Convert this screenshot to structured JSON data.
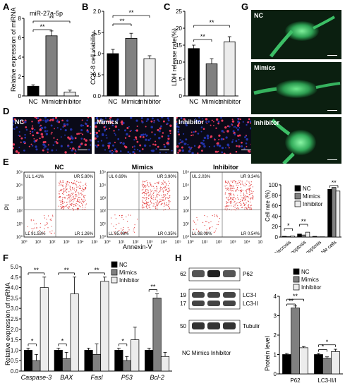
{
  "panels": {
    "A": {
      "label": "A",
      "title": "miR-27a-5p",
      "ylabel": "Relative expression of miRNA",
      "sig": [
        "**",
        "**"
      ]
    },
    "B": {
      "label": "B",
      "ylabel": "CCK-8 cell viability",
      "sig": [
        "**",
        "**"
      ]
    },
    "C": {
      "label": "C",
      "ylabel": "LDH release rate(%)",
      "sig": [
        "**",
        "**"
      ]
    },
    "D": {
      "label": "D",
      "images": [
        "NC",
        "Mimics",
        "Inhibitor"
      ]
    },
    "E": {
      "label": "E",
      "titles": [
        "NC",
        "Mimics",
        "Inhibitor"
      ],
      "ylabel": "PI",
      "xlabel": "Annexin-V",
      "quadrants": [
        {
          "ul": "UL 1.41%",
          "ur": "UR 5.80%",
          "ll": "LL 91.53%",
          "lr": "LR 1.26%"
        },
        {
          "ul": "UL 0.69%",
          "ur": "UR 3.90%",
          "ll": "LL 95.06%",
          "lr": "LR 0.35%"
        },
        {
          "ul": "UL 2.03%",
          "ur": "UR 9.34%",
          "ll": "LL 88.08%",
          "lr": "LR 0.54%"
        }
      ],
      "bar_ylabel": "Cell rate (%)",
      "legend": [
        "NC",
        "Mimics",
        "Inhibitor"
      ],
      "sig": [
        "*",
        "**",
        "**"
      ]
    },
    "F": {
      "label": "F",
      "ylabel": "Relative expression of mRNA",
      "legend": [
        "NC",
        "Mimics",
        "Inhibitor"
      ],
      "sig": [
        "*",
        "**",
        "*",
        "**",
        "**",
        "*",
        "**"
      ]
    },
    "G": {
      "label": "G",
      "images": [
        "NC",
        "Mimics",
        "Inhibitor"
      ]
    },
    "H": {
      "label": "H",
      "blot_labels": [
        "P62",
        "LC3-I",
        "LC3-II",
        "Tubulin"
      ],
      "markers": [
        "62",
        "19",
        "17",
        "50"
      ],
      "lanes": "NC  Mimics Inhibitor",
      "ylabel": "Protein level",
      "legend": [
        "NC",
        "Mimics",
        "Inhibitor"
      ],
      "sig": [
        "**",
        "**",
        "*",
        "*"
      ]
    }
  },
  "colors": {
    "nc": "#000000",
    "mimics": "#808080",
    "inhibitor": "#ececec",
    "dapi": "#2233aa",
    "edu": "#e8395a",
    "gfp": "#37c86a"
  },
  "chart_data": [
    {
      "type": "bar",
      "panel": "A",
      "categories": [
        "NC",
        "Mimics",
        "Inhibitor"
      ],
      "values": [
        1.0,
        6.2,
        0.4
      ],
      "errors": [
        0.15,
        0.5,
        0.2
      ],
      "ylim": [
        0,
        8
      ],
      "yticks": [
        0,
        2,
        4,
        6,
        8
      ],
      "title": "miR-27a-5p",
      "ylabel": "Relative expression of miRNA"
    },
    {
      "type": "bar",
      "panel": "B",
      "categories": [
        "NC",
        "Mimics",
        "Inhibitor"
      ],
      "values": [
        1.0,
        1.36,
        0.88
      ],
      "errors": [
        0.1,
        0.12,
        0.07
      ],
      "ylim": [
        0,
        2.0
      ],
      "yticks": [
        0,
        0.5,
        1.0,
        1.5,
        2.0
      ],
      "ylabel": "CCK-8 cell viability"
    },
    {
      "type": "bar",
      "panel": "C",
      "categories": [
        "NC",
        "Mimics",
        "Inhibitor"
      ],
      "values": [
        14,
        9.5,
        16
      ],
      "errors": [
        1.0,
        1.5,
        1.5
      ],
      "ylim": [
        0,
        25
      ],
      "yticks": [
        0,
        5,
        10,
        15,
        20,
        25
      ],
      "ylabel": "LDH release rate(%)"
    },
    {
      "type": "bar",
      "panel": "E",
      "categories": [
        "Necrosis",
        "Late apoptosis",
        "Early apoptosis",
        "Viable cells"
      ],
      "series": [
        {
          "name": "NC",
          "values": [
            1.4,
            5.8,
            1.3,
            91.5
          ]
        },
        {
          "name": "Mimics",
          "values": [
            0.7,
            3.9,
            0.4,
            95.1
          ]
        },
        {
          "name": "Inhibitor",
          "values": [
            2.0,
            9.3,
            0.5,
            88.1
          ]
        }
      ],
      "ylim": [
        0,
        100
      ],
      "yticks": [
        0,
        20,
        40,
        60,
        80,
        100
      ],
      "ylabel": "Cell rate (%)"
    },
    {
      "type": "bar",
      "panel": "F",
      "categories": [
        "Caspase-3",
        "BAX",
        "Fasl",
        "P53",
        "Bcl-2"
      ],
      "series": [
        {
          "name": "NC",
          "values": [
            1.0,
            1.0,
            1.0,
            1.0,
            1.0
          ],
          "errors": [
            0.1,
            0.1,
            0.1,
            0.1,
            0.1
          ]
        },
        {
          "name": "Mimics",
          "values": [
            0.5,
            0.6,
            0.8,
            0.5,
            3.5
          ],
          "errors": [
            0.3,
            0.3,
            0.5,
            0.2,
            0.2
          ]
        },
        {
          "name": "Inhibitor",
          "values": [
            4.0,
            3.7,
            4.3,
            1.5,
            0.7
          ],
          "errors": [
            0.5,
            0.8,
            0.2,
            0.6,
            0.2
          ]
        }
      ],
      "ylim": [
        0,
        5
      ],
      "yticks": [
        0,
        0.5,
        1,
        1.5,
        2,
        2.5,
        3,
        3.5,
        4,
        4.5,
        5
      ],
      "ylabel": "Relative expression of mRNA"
    },
    {
      "type": "bar",
      "panel": "H",
      "categories": [
        "P62",
        "LC3-II/I"
      ],
      "series": [
        {
          "name": "NC",
          "values": [
            1.0,
            1.0
          ],
          "errors": [
            0.05,
            0.05
          ]
        },
        {
          "name": "Mimics",
          "values": [
            3.4,
            0.8
          ],
          "errors": [
            0.1,
            0.08
          ]
        },
        {
          "name": "Inhibitor",
          "values": [
            1.35,
            1.15
          ],
          "errors": [
            0.06,
            0.12
          ]
        }
      ],
      "ylim": [
        0,
        4
      ],
      "yticks": [
        0,
        1,
        2,
        3,
        4
      ],
      "ylabel": "Protein level"
    }
  ]
}
